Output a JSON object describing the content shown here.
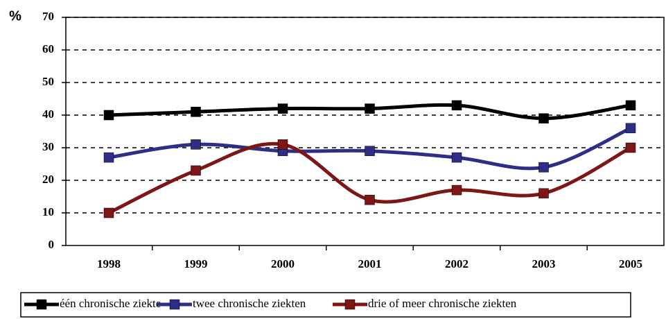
{
  "chart_data": {
    "type": "line",
    "y_label": "%",
    "categories": [
      "1998",
      "1999",
      "2000",
      "2001",
      "2002",
      "2003",
      "2005"
    ],
    "series": [
      {
        "name": "één chronische ziekte",
        "color": "#000000",
        "values": [
          40,
          41,
          42,
          42,
          43,
          39,
          43
        ]
      },
      {
        "name": "twee chronische ziekten",
        "color": "#2e2e86",
        "values": [
          27,
          31,
          29,
          29,
          27,
          24,
          36
        ]
      },
      {
        "name": "drie of meer chronische ziekten",
        "color": "#7e1616",
        "values": [
          10,
          23,
          31,
          14,
          17,
          16,
          30
        ]
      }
    ],
    "ylim": [
      0,
      70
    ],
    "yticks": [
      0,
      10,
      20,
      30,
      40,
      50,
      60,
      70
    ],
    "grid": true,
    "smooth": true,
    "legend": "bottom"
  }
}
